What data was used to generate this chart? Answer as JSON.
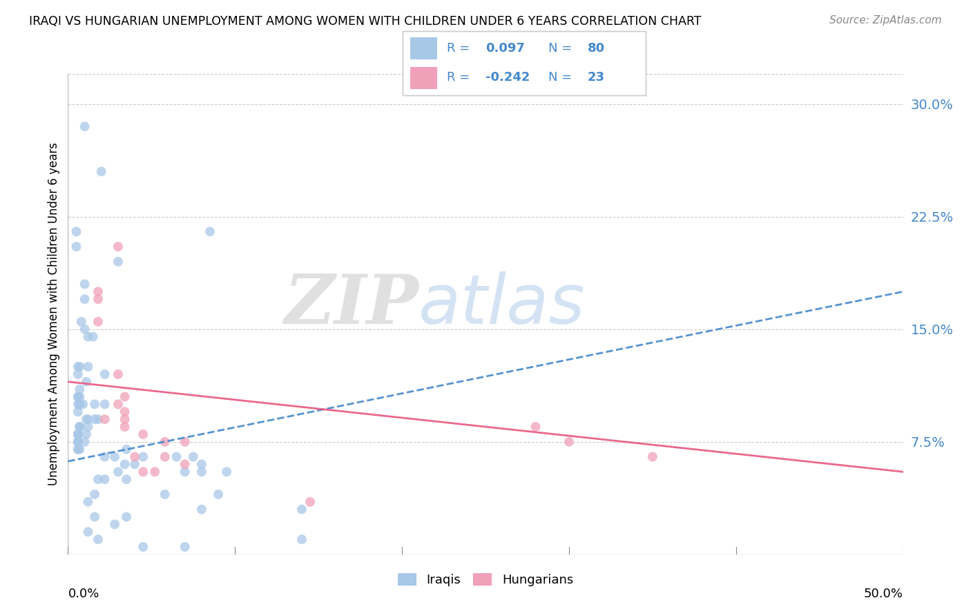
{
  "title": "IRAQI VS HUNGARIAN UNEMPLOYMENT AMONG WOMEN WITH CHILDREN UNDER 6 YEARS CORRELATION CHART",
  "source": "Source: ZipAtlas.com",
  "ylabel": "Unemployment Among Women with Children Under 6 years",
  "xmin": 0.0,
  "xmax": 0.5,
  "ymin": 0.0,
  "ymax": 0.32,
  "yticks": [
    0.0,
    0.075,
    0.15,
    0.225,
    0.3
  ],
  "ytick_labels": [
    "",
    "7.5%",
    "15.0%",
    "22.5%",
    "30.0%"
  ],
  "xtick_labels_bottom": [
    "0.0%",
    "50.0%"
  ],
  "legend_labels": [
    "Iraqis",
    "Hungarians"
  ],
  "blue_R": "0.097",
  "blue_N": "80",
  "pink_R": "-0.242",
  "pink_N": "23",
  "blue_color": "#a8c8e8",
  "pink_color": "#f0a0b8",
  "blue_line_color": "#4488cc",
  "pink_line_color": "#e85880",
  "blue_trend_x0": 0.0,
  "blue_trend_y0": 0.062,
  "blue_trend_x1": 0.5,
  "blue_trend_y1": 0.175,
  "pink_trend_x0": 0.0,
  "pink_trend_y0": 0.115,
  "pink_trend_x1": 0.5,
  "pink_trend_y1": 0.055,
  "iraqis_x": [
    0.01,
    0.02,
    0.005,
    0.005,
    0.085,
    0.03,
    0.01,
    0.01,
    0.008,
    0.01,
    0.012,
    0.015,
    0.006,
    0.007,
    0.012,
    0.022,
    0.006,
    0.011,
    0.007,
    0.006,
    0.006,
    0.007,
    0.009,
    0.007,
    0.006,
    0.016,
    0.022,
    0.007,
    0.006,
    0.012,
    0.011,
    0.016,
    0.018,
    0.012,
    0.007,
    0.007,
    0.007,
    0.006,
    0.006,
    0.006,
    0.006,
    0.011,
    0.006,
    0.006,
    0.006,
    0.01,
    0.006,
    0.007,
    0.006,
    0.006,
    0.035,
    0.045,
    0.022,
    0.075,
    0.065,
    0.028,
    0.034,
    0.08,
    0.04,
    0.095,
    0.03,
    0.07,
    0.08,
    0.035,
    0.022,
    0.018,
    0.058,
    0.09,
    0.016,
    0.012,
    0.08,
    0.14,
    0.016,
    0.035,
    0.028,
    0.012,
    0.018,
    0.14,
    0.045,
    0.07
  ],
  "iraqis_y": [
    0.285,
    0.255,
    0.215,
    0.205,
    0.215,
    0.195,
    0.18,
    0.17,
    0.155,
    0.15,
    0.145,
    0.145,
    0.125,
    0.125,
    0.125,
    0.12,
    0.12,
    0.115,
    0.11,
    0.105,
    0.105,
    0.105,
    0.1,
    0.1,
    0.1,
    0.1,
    0.1,
    0.1,
    0.095,
    0.09,
    0.09,
    0.09,
    0.09,
    0.085,
    0.085,
    0.085,
    0.085,
    0.08,
    0.08,
    0.08,
    0.08,
    0.08,
    0.075,
    0.075,
    0.075,
    0.075,
    0.075,
    0.07,
    0.07,
    0.07,
    0.07,
    0.065,
    0.065,
    0.065,
    0.065,
    0.065,
    0.06,
    0.06,
    0.06,
    0.055,
    0.055,
    0.055,
    0.055,
    0.05,
    0.05,
    0.05,
    0.04,
    0.04,
    0.04,
    0.035,
    0.03,
    0.03,
    0.025,
    0.025,
    0.02,
    0.015,
    0.01,
    0.01,
    0.005,
    0.005
  ],
  "hungarians_x": [
    0.03,
    0.018,
    0.018,
    0.018,
    0.03,
    0.034,
    0.03,
    0.034,
    0.022,
    0.034,
    0.034,
    0.045,
    0.058,
    0.07,
    0.04,
    0.058,
    0.07,
    0.045,
    0.052,
    0.3,
    0.35,
    0.28,
    0.145
  ],
  "hungarians_y": [
    0.205,
    0.175,
    0.17,
    0.155,
    0.12,
    0.105,
    0.1,
    0.095,
    0.09,
    0.09,
    0.085,
    0.08,
    0.075,
    0.075,
    0.065,
    0.065,
    0.06,
    0.055,
    0.055,
    0.075,
    0.065,
    0.085,
    0.035
  ]
}
